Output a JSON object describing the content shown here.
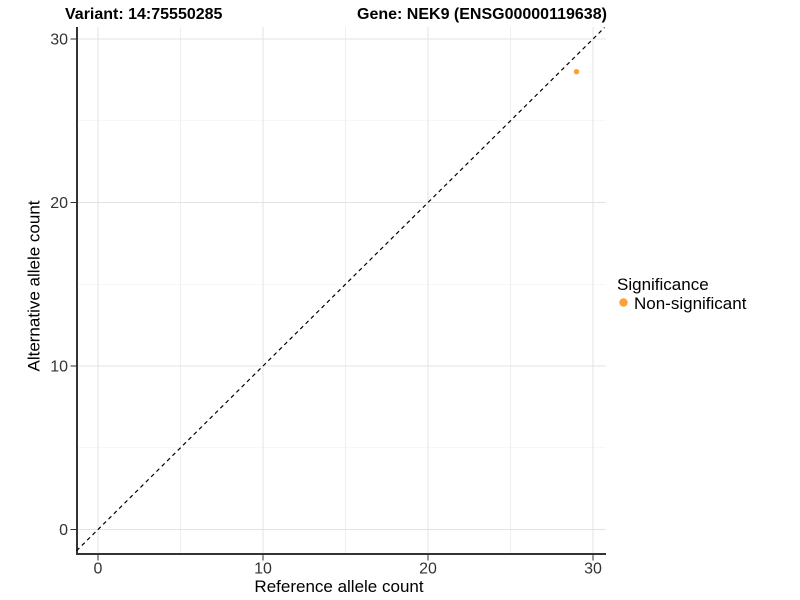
{
  "chart_data": {
    "type": "scatter",
    "titles": {
      "variant": "Variant: 14:75550285",
      "gene": "Gene: NEK9 (ENSG00000119638)"
    },
    "xlabel": "Reference allele count",
    "ylabel": "Alternative allele count",
    "xticks": [
      0,
      10,
      20,
      30
    ],
    "yticks": [
      0,
      10,
      20,
      30
    ],
    "minor_ticks": [
      5,
      15,
      25
    ],
    "xlim": [
      -1.3,
      30.8
    ],
    "ylim": [
      -1.5,
      30.7
    ],
    "grid": true,
    "identity_line": {
      "style": "dashed",
      "slope": 1,
      "intercept": 0,
      "color": "#000000"
    },
    "points": [
      {
        "x": 29,
        "y": 28,
        "series": "Non-significant"
      }
    ],
    "legend": {
      "title": "Significance",
      "position": "right",
      "items": [
        {
          "label": "Non-significant",
          "color": "#F9A23B"
        }
      ]
    },
    "colors": {
      "point": "#F9A23B",
      "axis_line": "#333333",
      "tick_mark": "#333333",
      "tick_text": "#333333",
      "grid_major": "#e3e3e3",
      "grid_minor": "#efefef",
      "background": "#ffffff"
    }
  }
}
